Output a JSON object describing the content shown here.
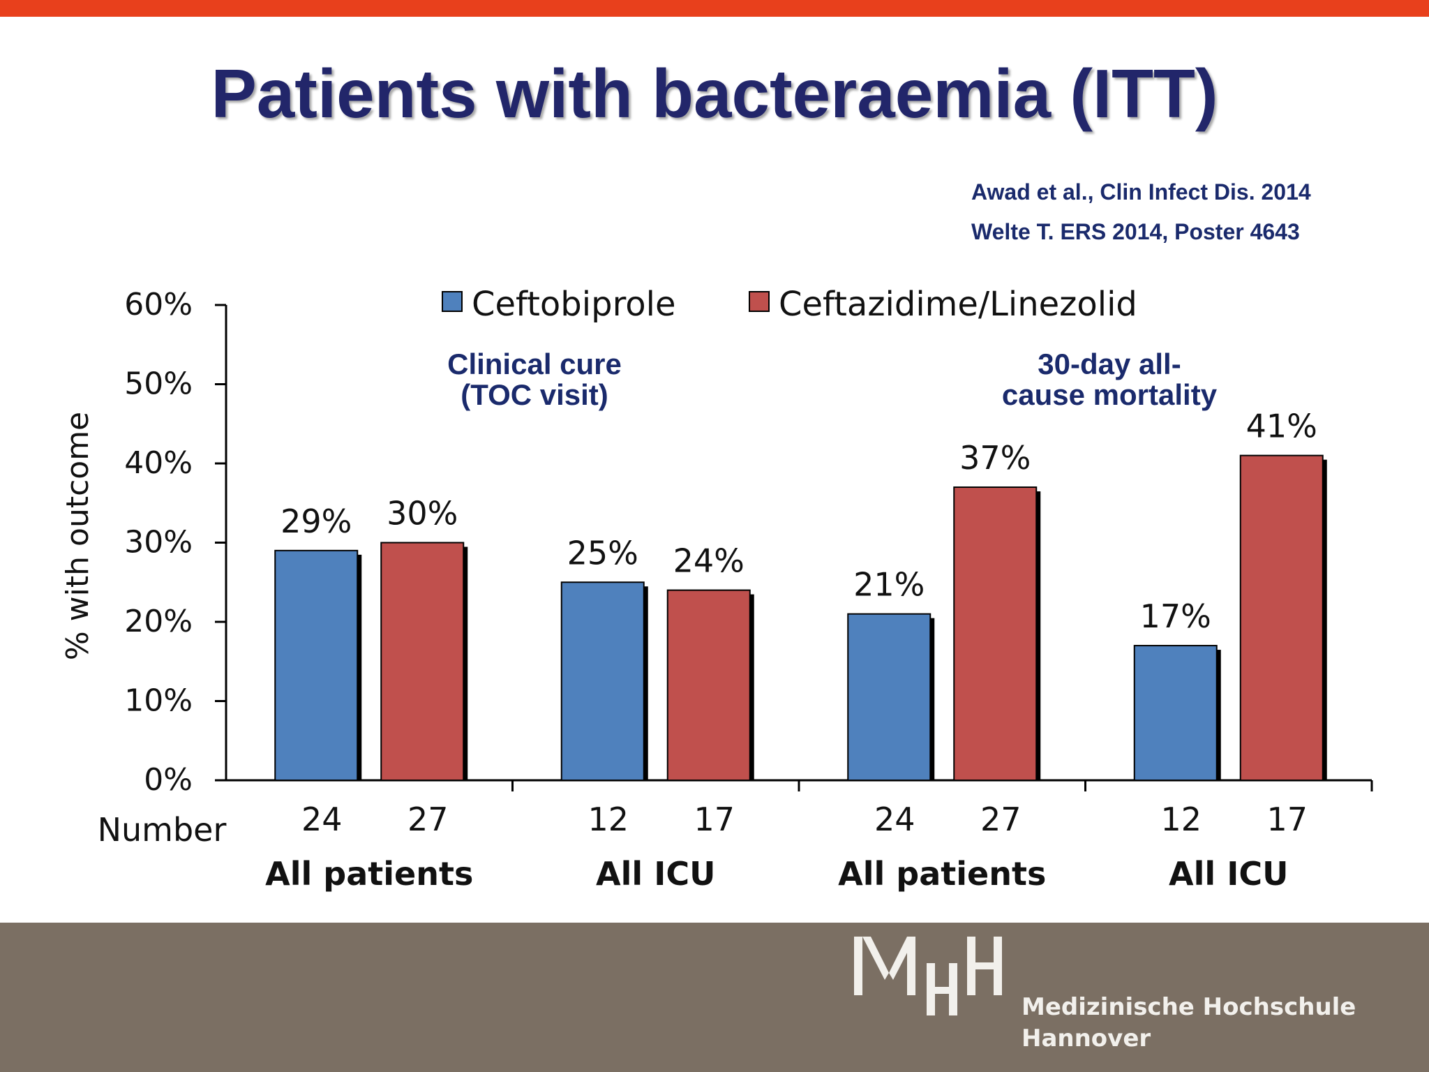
{
  "slide": {
    "title": "Patients with bacteraemia (ITT)",
    "references": [
      "Awad et al., Clin Infect Dis. 2014",
      "Welte T. ERS 2014, Poster 4643"
    ]
  },
  "chart_data": {
    "type": "bar",
    "title": "",
    "ylabel": "% with outcome",
    "ylim": [
      0,
      60
    ],
    "yticks": [
      "0%",
      "10%",
      "20%",
      "30%",
      "40%",
      "50%",
      "60%"
    ],
    "legend_position": "top",
    "number_label": "Number",
    "categories": [
      "All patients",
      "All ICU",
      "All patients",
      "All ICU"
    ],
    "panels": [
      {
        "label": "Clinical cure\n(TOC visit)",
        "categories": [
          0,
          1
        ]
      },
      {
        "label": "30-day all-\ncause mortality",
        "categories": [
          2,
          3
        ]
      }
    ],
    "series": [
      {
        "name": "Ceftobiprole",
        "color": "#4f81bd",
        "values": [
          29,
          25,
          21,
          17
        ],
        "labels": [
          "29%",
          "25%",
          "21%",
          "17%"
        ],
        "numbers": [
          "24",
          "12",
          "24",
          "12"
        ]
      },
      {
        "name": "Ceftazidime/Linezolid",
        "color": "#c0504d",
        "values": [
          30,
          24,
          37,
          41
        ],
        "labels": [
          "30%",
          "24%",
          "37%",
          "41%"
        ],
        "numbers": [
          "27",
          "17",
          "27",
          "17"
        ]
      }
    ]
  },
  "footer": {
    "logo_mark": "MHH",
    "institution_line1": "Medizinische Hochschule",
    "institution_line2": "Hannover",
    "background": "#7b6f63"
  }
}
